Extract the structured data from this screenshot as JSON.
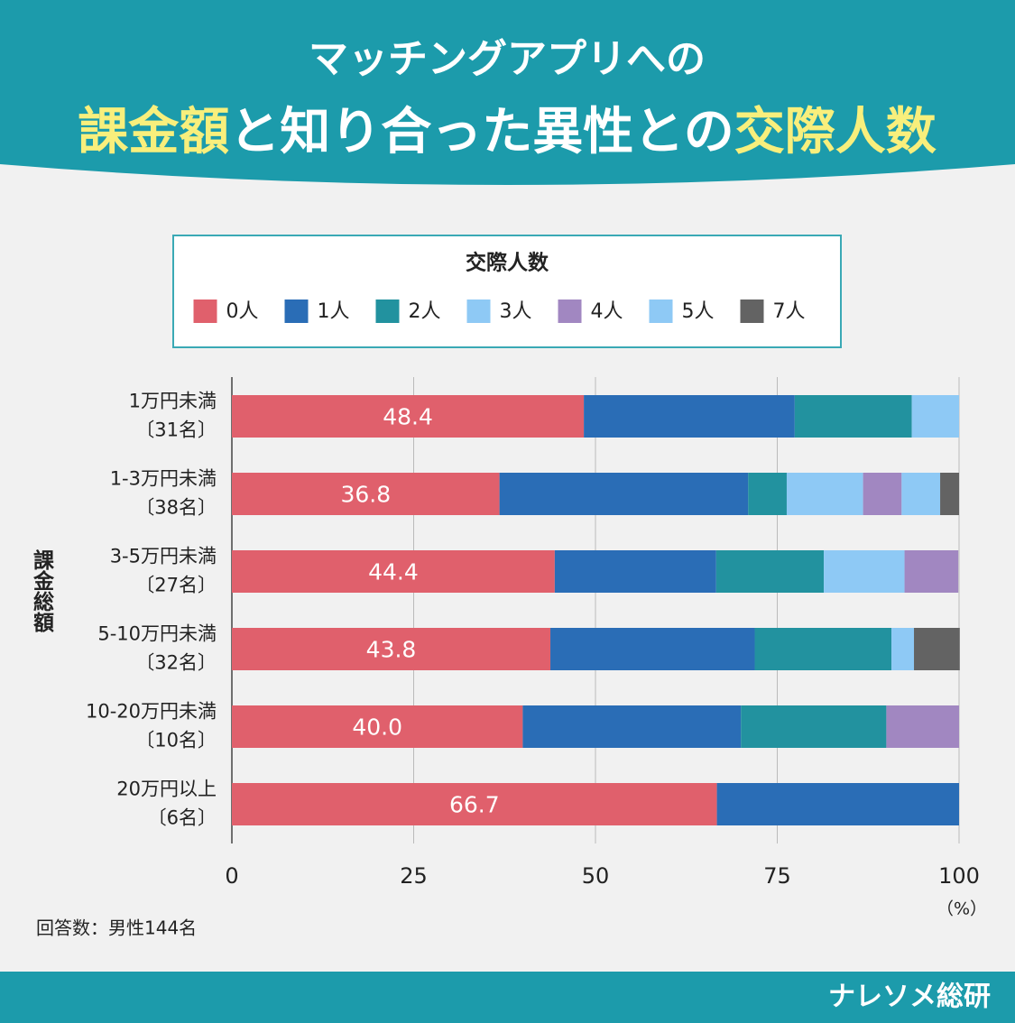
{
  "chart_data": {
    "type": "stacked_barh",
    "title_lines": [
      [
        {
          "text": "マッチングアプリへの",
          "highlight": false
        }
      ],
      [
        {
          "text": "課金額",
          "highlight": true
        },
        {
          "text": "と知り合った異性との",
          "highlight": false
        },
        {
          "text": "交際人数",
          "highlight": true
        }
      ]
    ],
    "legend_title": "交際人数",
    "y_axis_label": "課金総額",
    "x_unit": "（%）",
    "footnote": "回答数：男性144名",
    "brand": "ナレソメ総研",
    "categories": [
      "1万円未満",
      "1-3万円未満",
      "3-5万円未満",
      "5-10万円未満",
      "10-20万円未満",
      "20万円以上"
    ],
    "category_counts": [
      "〔31名〕",
      "〔38名〕",
      "〔27名〕",
      "〔32名〕",
      "〔10名〕",
      "〔6名〕"
    ],
    "series": [
      {
        "name": "0人",
        "color": "#e0606c",
        "values": [
          48.4,
          36.8,
          44.4,
          43.8,
          40.0,
          66.7
        ],
        "value_labels": [
          "48.4",
          "36.8",
          "44.4",
          "43.8",
          "40.0",
          "66.7"
        ]
      },
      {
        "name": "1人",
        "color": "#2a6db6",
        "values": [
          29.0,
          34.2,
          22.2,
          28.1,
          30.0,
          33.3
        ]
      },
      {
        "name": "2人",
        "color": "#22929f",
        "values": [
          16.1,
          5.3,
          14.8,
          18.8,
          20.0,
          0
        ]
      },
      {
        "name": "3人",
        "color": "#8ec9f5",
        "values": [
          6.5,
          10.5,
          11.1,
          3.1,
          0,
          0
        ]
      },
      {
        "name": "4人",
        "color": "#a187c1",
        "values": [
          0,
          5.3,
          7.4,
          0,
          10.0,
          0
        ]
      },
      {
        "name": "5人",
        "color": "#8ec9f5",
        "values": [
          0,
          5.3,
          0,
          0,
          0,
          0
        ]
      },
      {
        "name": "7人",
        "color": "#636363",
        "values": [
          0,
          2.6,
          0,
          6.3,
          0,
          0
        ]
      }
    ],
    "xlim": [
      0,
      100
    ],
    "xticks": [
      0,
      25,
      50,
      75,
      100
    ],
    "grid": true
  }
}
